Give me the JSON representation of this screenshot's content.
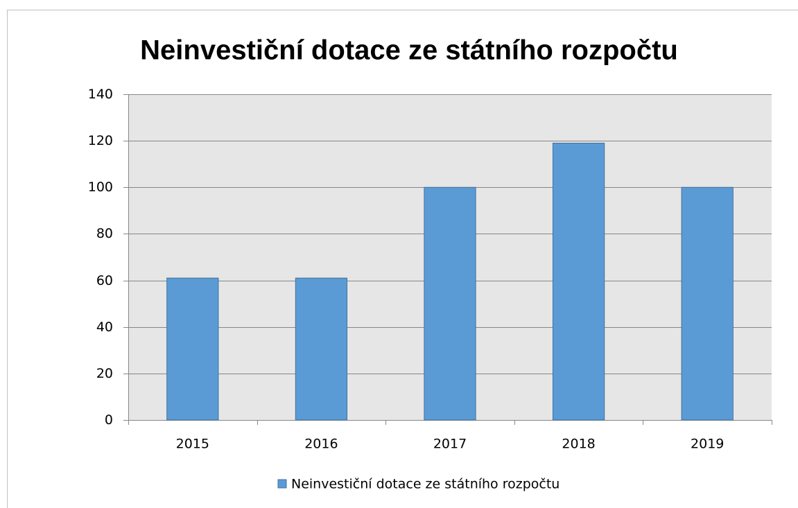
{
  "chart_data": {
    "type": "bar",
    "title": "Neinvestiční dotace ze státního rozpočtu",
    "categories": [
      "2015",
      "2016",
      "2017",
      "2018",
      "2019"
    ],
    "series": [
      {
        "name": "Neinvestiční dotace ze státního rozpočtu",
        "color": "#5b9bd5",
        "values": [
          61,
          61,
          100,
          119,
          100
        ]
      }
    ],
    "ylim": [
      0,
      140
    ],
    "yticks": [
      0,
      20,
      40,
      60,
      80,
      100,
      120,
      140
    ],
    "grid": true,
    "legend": "bottom"
  }
}
